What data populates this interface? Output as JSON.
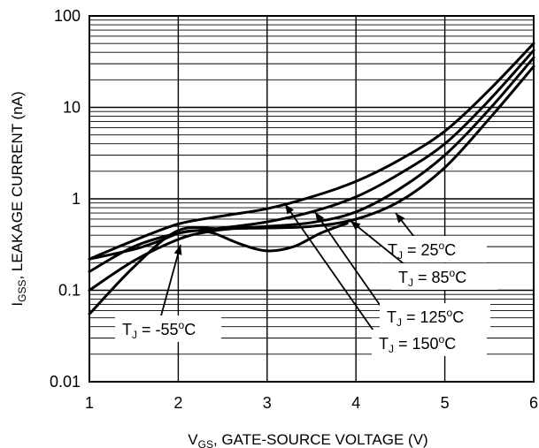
{
  "chart_data": {
    "type": "line",
    "title": "",
    "xlabel": "V",
    "xlabel_sub": "GS",
    "xlabel_rest": ", GATE-SOURCE VOLTAGE (V)",
    "ylabel": "I",
    "ylabel_sub": "GSS",
    "ylabel_rest": ", LEAKAGE CURRENT (nA)",
    "xlim": [
      1,
      6
    ],
    "ylim": [
      0.01,
      100
    ],
    "y_scale": "log",
    "grid": true,
    "x_ticks": [
      "1",
      "2",
      "3",
      "4",
      "5",
      "6"
    ],
    "y_ticks": [
      "0.01",
      "0.1",
      "1",
      "10",
      "100"
    ],
    "series": [
      {
        "name": "25oC",
        "x": [
          1.0,
          1.5,
          2.0,
          2.3,
          2.6,
          3.0,
          3.5,
          4.0,
          4.5,
          5.0,
          5.5,
          6.0
        ],
        "y": [
          0.1,
          0.21,
          0.36,
          0.43,
          0.47,
          0.48,
          0.5,
          0.6,
          0.95,
          2.2,
          7.5,
          28
        ]
      },
      {
        "name": "85oC",
        "x": [
          1.0,
          1.5,
          2.0,
          2.5,
          3.0,
          3.5,
          4.0,
          4.5,
          5.0,
          5.5,
          6.0
        ],
        "y": [
          0.055,
          0.18,
          0.45,
          0.47,
          0.5,
          0.55,
          0.72,
          1.3,
          3.0,
          9.5,
          35
        ]
      },
      {
        "name": "125oC",
        "x": [
          1.0,
          1.5,
          2.0,
          2.5,
          3.0,
          3.5,
          4.0,
          4.5,
          5.0,
          5.5,
          6.0
        ],
        "y": [
          0.16,
          0.3,
          0.42,
          0.48,
          0.56,
          0.72,
          1.05,
          1.9,
          4.0,
          12,
          42
        ]
      },
      {
        "name": "150oC",
        "x": [
          1.0,
          1.5,
          2.0,
          2.5,
          3.0,
          3.5,
          4.0,
          4.5,
          5.0,
          5.5,
          6.0
        ],
        "y": [
          0.22,
          0.35,
          0.53,
          0.65,
          0.78,
          1.05,
          1.55,
          2.7,
          5.5,
          15.5,
          50
        ]
      },
      {
        "name": "-55oC",
        "x": [
          1.0,
          1.5,
          1.8,
          2.0,
          2.2,
          2.4,
          2.7,
          3.0,
          3.3,
          3.6,
          3.9
        ],
        "y": [
          0.22,
          0.28,
          0.35,
          0.42,
          0.45,
          0.42,
          0.32,
          0.27,
          0.3,
          0.42,
          0.54
        ]
      }
    ],
    "annotations": [
      {
        "prefix": "T",
        "sub": "J",
        "text": " = 25",
        "sup": "o",
        "unit": "C"
      },
      {
        "prefix": "T",
        "sub": "J",
        "text": " = 85",
        "sup": "o",
        "unit": "C"
      },
      {
        "prefix": "T",
        "sub": "J",
        "text": " = 125",
        "sup": "o",
        "unit": "C"
      },
      {
        "prefix": "T",
        "sub": "J",
        "text": " = 150",
        "sup": "o",
        "unit": "C"
      },
      {
        "prefix": "T",
        "sub": "J",
        "text": " = -55",
        "sup": "o",
        "unit": "C"
      }
    ]
  }
}
